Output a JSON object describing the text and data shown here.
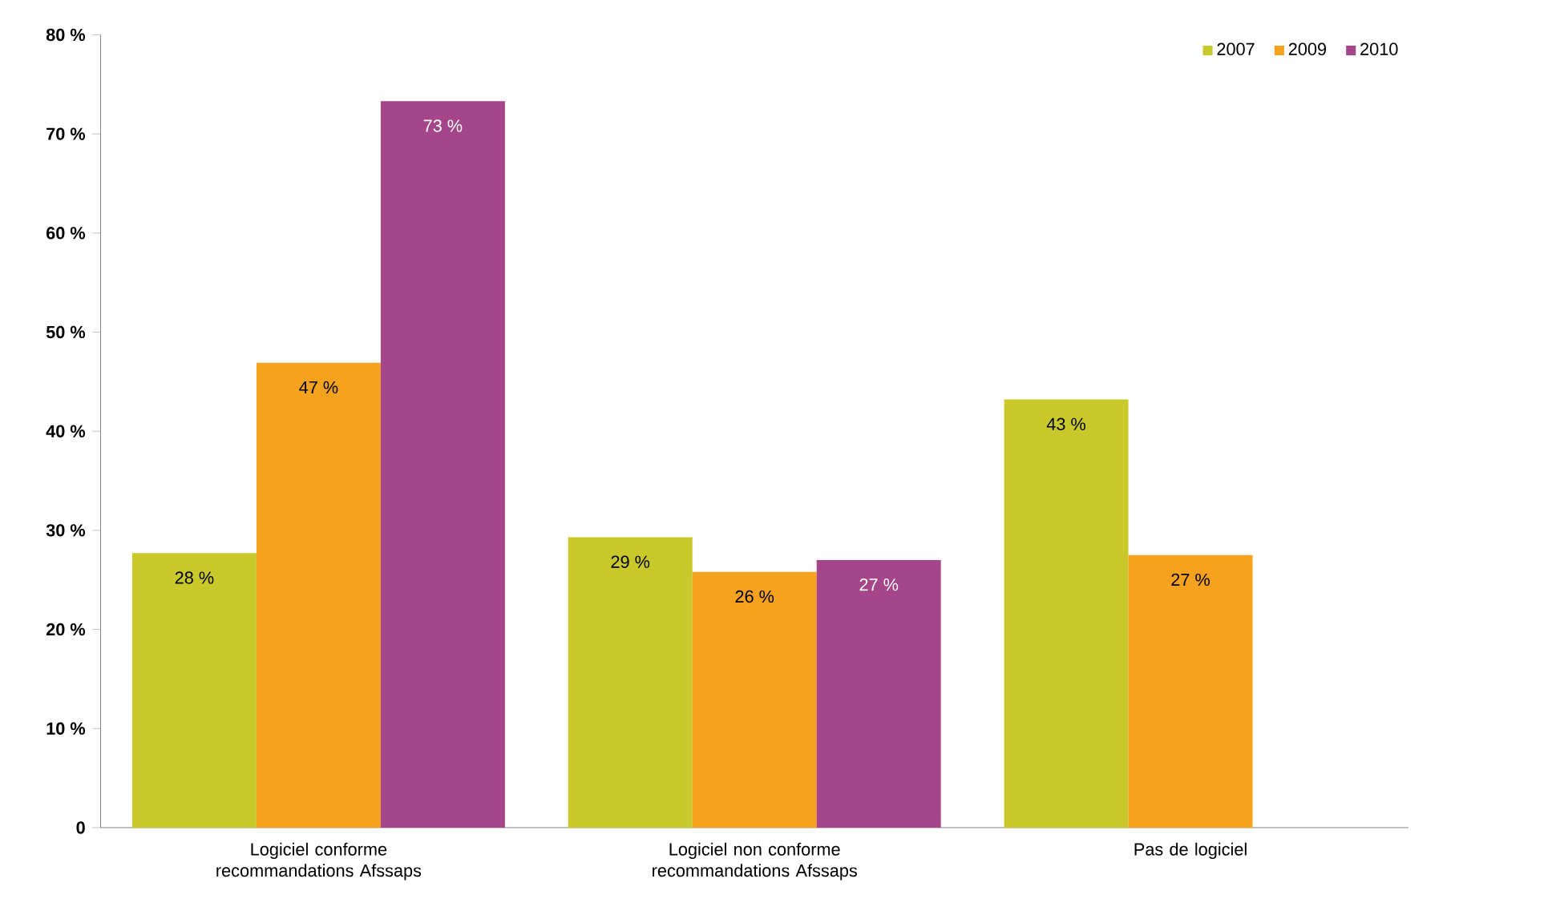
{
  "chart_data": {
    "type": "bar",
    "categories": [
      "Logiciel conforme recommandations Afssaps",
      "Logiciel non conforme recommandations Afssaps",
      "Pas de logiciel"
    ],
    "series": [
      {
        "name": "2007",
        "color": "#c9c92c",
        "values": [
          27.7,
          29.3,
          43.2
        ],
        "value_labels": [
          "28 %",
          "29 %",
          "43 %"
        ]
      },
      {
        "name": "2009",
        "color": "#f5a21e",
        "values": [
          46.9,
          25.8,
          27.5
        ],
        "value_labels": [
          "47 %",
          "26 %",
          "27 %"
        ]
      },
      {
        "name": "2010",
        "color": "#a5468a",
        "values": [
          73.3,
          27.0,
          null
        ],
        "value_labels": [
          "73 %",
          "27 %",
          null
        ]
      }
    ],
    "ylim": [
      0,
      80
    ],
    "yticks": [
      {
        "value": 0,
        "label": "0"
      },
      {
        "value": 10,
        "label": "10 %"
      },
      {
        "value": 20,
        "label": "20 %"
      },
      {
        "value": 30,
        "label": "30 %"
      },
      {
        "value": 40,
        "label": "40 %"
      },
      {
        "value": 50,
        "label": "50 %"
      },
      {
        "value": 60,
        "label": "60 %"
      },
      {
        "value": 70,
        "label": "70 %"
      },
      {
        "value": 80,
        "label": "80 %"
      }
    ],
    "grid": false,
    "legend": "top right"
  }
}
